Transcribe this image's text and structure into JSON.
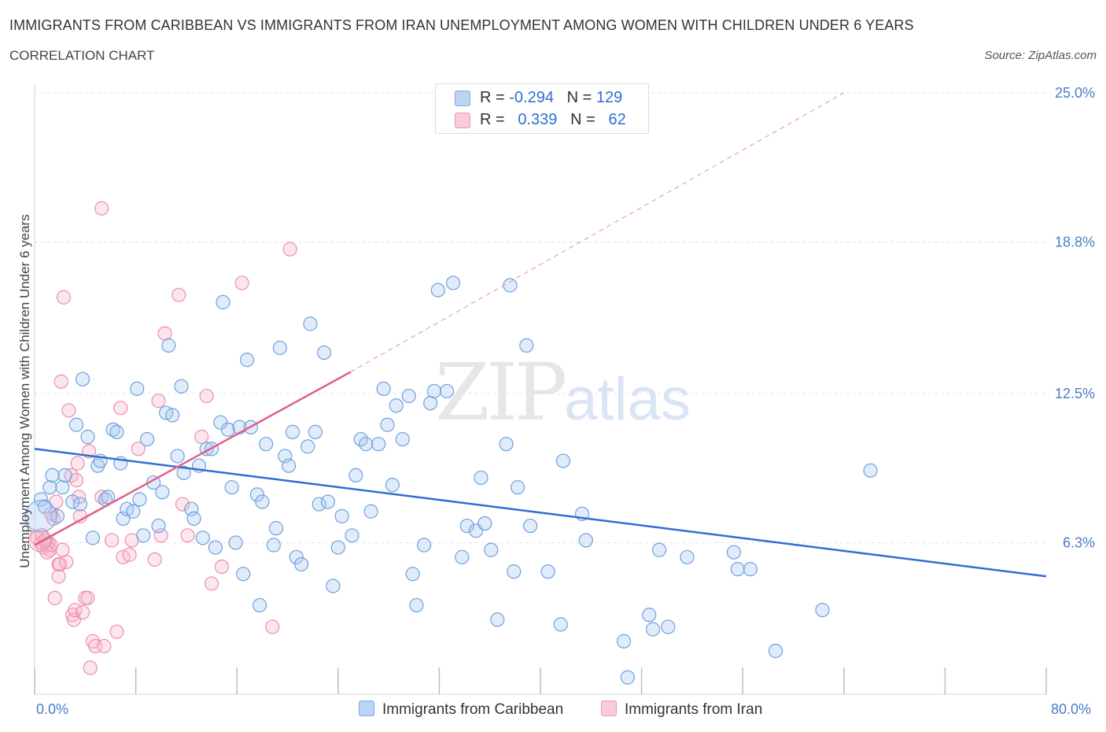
{
  "header": {
    "title": "IMMIGRANTS FROM CARIBBEAN VS IMMIGRANTS FROM IRAN UNEMPLOYMENT AMONG WOMEN WITH CHILDREN UNDER 6 YEARS",
    "subtitle": "CORRELATION CHART",
    "source": "Source: ZipAtlas.com"
  },
  "watermark": {
    "zip": "ZIP",
    "atlas": "atlas"
  },
  "legend": {
    "rows": [
      {
        "r_label": "R =",
        "r_value": "-0.294",
        "n_label": "N =",
        "n_value": "129",
        "color": "#aac8f0"
      },
      {
        "r_label": "R =",
        "r_value": "0.339",
        "n_label": "N =",
        "n_value": "62",
        "color": "#f5b8ca"
      }
    ]
  },
  "colors": {
    "caribbean_fill": "rgba(170,200,240,0.35)",
    "caribbean_stroke": "#6fa0e0",
    "caribbean_line": "#2f6fd1",
    "iran_fill": "rgba(245,184,202,0.35)",
    "iran_stroke": "#ec8faa",
    "iran_line": "#e0608a",
    "grid": "#dde3ea"
  },
  "chart_data": {
    "type": "scatter",
    "title": "IMMIGRANTS FROM CARIBBEAN VS IMMIGRANTS FROM IRAN UNEMPLOYMENT AMONG WOMEN WITH CHILDREN UNDER 6 YEARS",
    "ylabel": "Unemployment Among Women with Children Under 6 years",
    "xlim": [
      0,
      80
    ],
    "ylim": [
      0,
      25
    ],
    "x_tick_labels": [
      "0.0%",
      "80.0%"
    ],
    "y_ticks": [
      6.3,
      12.5,
      18.8,
      25.0
    ],
    "y_tick_labels": [
      "6.3%",
      "12.5%",
      "18.8%",
      "25.0%"
    ],
    "grid": true,
    "legend_position": "top-center",
    "series": [
      {
        "name": "Immigrants from Caribbean",
        "R": -0.294,
        "N": 129,
        "trend": {
          "x": [
            0,
            80
          ],
          "y": [
            10.2,
            4.9
          ]
        },
        "points": [
          [
            0.5,
            8.1
          ],
          [
            0.8,
            7.8
          ],
          [
            1.2,
            8.6
          ],
          [
            1.4,
            9.1
          ],
          [
            1.8,
            7.4
          ],
          [
            2.2,
            8.6
          ],
          [
            2.4,
            9.1
          ],
          [
            3.0,
            8.0
          ],
          [
            3.3,
            11.2
          ],
          [
            3.6,
            7.9
          ],
          [
            3.8,
            13.1
          ],
          [
            4.2,
            10.7
          ],
          [
            4.6,
            6.5
          ],
          [
            5.0,
            9.5
          ],
          [
            5.2,
            9.7
          ],
          [
            5.6,
            8.1
          ],
          [
            5.8,
            8.2
          ],
          [
            6.2,
            11.0
          ],
          [
            6.5,
            10.9
          ],
          [
            6.8,
            9.6
          ],
          [
            7.0,
            7.3
          ],
          [
            7.3,
            7.7
          ],
          [
            7.8,
            7.6
          ],
          [
            8.1,
            12.7
          ],
          [
            8.3,
            8.1
          ],
          [
            8.6,
            6.6
          ],
          [
            8.9,
            10.6
          ],
          [
            9.4,
            8.8
          ],
          [
            9.8,
            7.0
          ],
          [
            10.1,
            8.4
          ],
          [
            10.4,
            11.7
          ],
          [
            10.6,
            14.5
          ],
          [
            10.9,
            11.6
          ],
          [
            11.3,
            9.9
          ],
          [
            11.6,
            12.8
          ],
          [
            11.8,
            9.2
          ],
          [
            12.4,
            7.7
          ],
          [
            12.6,
            7.3
          ],
          [
            13.0,
            9.5
          ],
          [
            13.3,
            6.5
          ],
          [
            13.6,
            10.2
          ],
          [
            14.0,
            10.2
          ],
          [
            14.3,
            6.1
          ],
          [
            14.7,
            11.3
          ],
          [
            14.9,
            16.3
          ],
          [
            15.3,
            11.0
          ],
          [
            15.6,
            8.6
          ],
          [
            15.9,
            6.3
          ],
          [
            16.2,
            11.1
          ],
          [
            16.5,
            5.0
          ],
          [
            16.8,
            13.9
          ],
          [
            17.1,
            11.1
          ],
          [
            17.6,
            8.3
          ],
          [
            17.8,
            3.7
          ],
          [
            18.0,
            8.0
          ],
          [
            18.3,
            10.4
          ],
          [
            18.9,
            6.2
          ],
          [
            19.1,
            6.9
          ],
          [
            19.4,
            14.4
          ],
          [
            19.8,
            9.9
          ],
          [
            20.1,
            9.5
          ],
          [
            20.4,
            10.9
          ],
          [
            20.7,
            5.7
          ],
          [
            21.1,
            5.4
          ],
          [
            21.6,
            10.3
          ],
          [
            21.8,
            15.4
          ],
          [
            22.2,
            10.9
          ],
          [
            22.5,
            7.9
          ],
          [
            22.9,
            14.2
          ],
          [
            23.2,
            8.0
          ],
          [
            23.6,
            4.5
          ],
          [
            24.0,
            6.1
          ],
          [
            24.3,
            7.4
          ],
          [
            25.1,
            6.6
          ],
          [
            25.4,
            9.1
          ],
          [
            25.8,
            10.6
          ],
          [
            26.2,
            10.4
          ],
          [
            26.6,
            7.6
          ],
          [
            27.2,
            10.4
          ],
          [
            27.6,
            12.7
          ],
          [
            27.9,
            11.2
          ],
          [
            28.3,
            8.7
          ],
          [
            28.6,
            12.0
          ],
          [
            29.1,
            10.6
          ],
          [
            29.6,
            12.4
          ],
          [
            29.9,
            5.0
          ],
          [
            30.2,
            3.7
          ],
          [
            30.8,
            6.2
          ],
          [
            31.3,
            12.1
          ],
          [
            31.6,
            12.6
          ],
          [
            31.9,
            16.8
          ],
          [
            32.6,
            12.6
          ],
          [
            33.1,
            17.1
          ],
          [
            33.8,
            5.7
          ],
          [
            34.2,
            7.0
          ],
          [
            34.9,
            6.8
          ],
          [
            35.3,
            9.0
          ],
          [
            35.6,
            7.1
          ],
          [
            36.1,
            6.0
          ],
          [
            36.6,
            3.1
          ],
          [
            37.3,
            10.4
          ],
          [
            37.6,
            17.0
          ],
          [
            37.9,
            5.1
          ],
          [
            38.2,
            8.6
          ],
          [
            38.9,
            14.5
          ],
          [
            39.2,
            7.0
          ],
          [
            40.6,
            5.1
          ],
          [
            41.6,
            2.9
          ],
          [
            41.8,
            9.7
          ],
          [
            43.3,
            7.5
          ],
          [
            43.6,
            6.4
          ],
          [
            46.6,
            2.2
          ],
          [
            46.9,
            0.7
          ],
          [
            48.6,
            3.3
          ],
          [
            48.9,
            2.7
          ],
          [
            49.4,
            6.0
          ],
          [
            50.1,
            2.8
          ],
          [
            51.6,
            5.7
          ],
          [
            55.3,
            5.9
          ],
          [
            55.6,
            5.2
          ],
          [
            56.6,
            5.2
          ],
          [
            58.6,
            1.8
          ],
          [
            62.3,
            3.5
          ],
          [
            66.1,
            9.3
          ]
        ]
      },
      {
        "name": "Immigrants from Iran",
        "R": 0.339,
        "N": 62,
        "trend": {
          "x": [
            0,
            25
          ],
          "y": [
            6.2,
            13.4
          ],
          "extended": {
            "x": [
              25,
              64
            ],
            "y": [
              13.4,
              25.0
            ]
          }
        },
        "points": [
          [
            0.2,
            6.5
          ],
          [
            0.5,
            6.3
          ],
          [
            0.7,
            6.1
          ],
          [
            0.9,
            6.4
          ],
          [
            1.0,
            6.2
          ],
          [
            1.1,
            6.3
          ],
          [
            1.2,
            6.0
          ],
          [
            1.3,
            6.2
          ],
          [
            1.0,
            5.9
          ],
          [
            1.3,
            7.5
          ],
          [
            1.5,
            7.3
          ],
          [
            1.7,
            8.0
          ],
          [
            1.9,
            5.4
          ],
          [
            2.0,
            5.4
          ],
          [
            1.6,
            4.0
          ],
          [
            1.9,
            4.9
          ],
          [
            2.1,
            13.0
          ],
          [
            2.3,
            16.5
          ],
          [
            2.5,
            5.5
          ],
          [
            2.7,
            11.8
          ],
          [
            2.9,
            9.1
          ],
          [
            3.0,
            3.3
          ],
          [
            3.1,
            3.1
          ],
          [
            3.2,
            3.5
          ],
          [
            3.3,
            8.9
          ],
          [
            3.4,
            9.6
          ],
          [
            3.5,
            8.2
          ],
          [
            3.6,
            7.4
          ],
          [
            3.8,
            3.4
          ],
          [
            4.0,
            4.0
          ],
          [
            4.2,
            4.0
          ],
          [
            4.4,
            1.1
          ],
          [
            4.6,
            2.2
          ],
          [
            4.8,
            2.0
          ],
          [
            5.3,
            8.2
          ],
          [
            5.5,
            2.0
          ],
          [
            5.3,
            20.2
          ],
          [
            6.1,
            6.4
          ],
          [
            6.5,
            2.6
          ],
          [
            6.8,
            11.9
          ],
          [
            7.0,
            5.7
          ],
          [
            7.5,
            5.8
          ],
          [
            7.7,
            6.4
          ],
          [
            8.2,
            10.2
          ],
          [
            9.5,
            5.6
          ],
          [
            9.8,
            12.2
          ],
          [
            10.0,
            6.6
          ],
          [
            10.3,
            15.0
          ],
          [
            11.4,
            16.6
          ],
          [
            11.7,
            7.9
          ],
          [
            12.1,
            6.6
          ],
          [
            13.2,
            10.7
          ],
          [
            13.6,
            12.4
          ],
          [
            14.0,
            4.6
          ],
          [
            14.8,
            5.3
          ],
          [
            16.4,
            17.1
          ],
          [
            18.8,
            2.8
          ],
          [
            20.2,
            18.5
          ],
          [
            0.6,
            6.6
          ],
          [
            0.8,
            6.4
          ],
          [
            2.2,
            6.0
          ],
          [
            4.3,
            10.1
          ]
        ]
      }
    ]
  },
  "bottom_legend": [
    "Immigrants from Caribbean",
    "Immigrants from Iran"
  ]
}
